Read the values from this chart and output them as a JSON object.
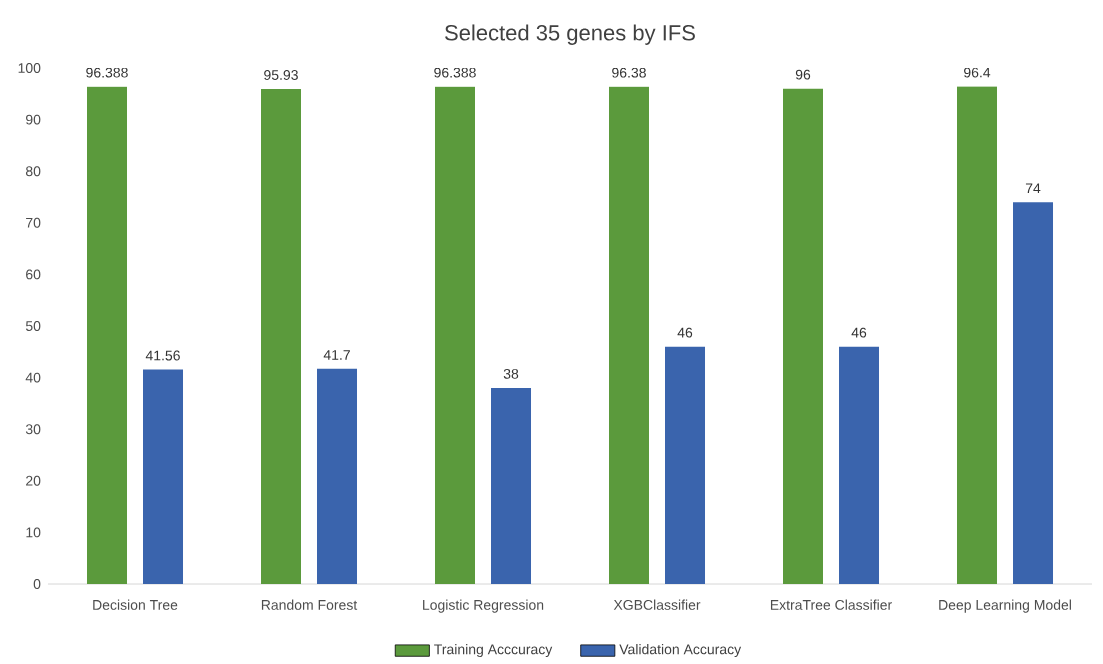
{
  "chart_data": {
    "type": "bar",
    "title": "Selected 35 genes by IFS",
    "categories": [
      "Decision Tree",
      "Random Forest",
      "Logistic Regression",
      "XGBClassifier",
      "ExtraTree Classifier",
      "Deep Learning Model"
    ],
    "series": [
      {
        "name": "Training Acccuracy",
        "color": "#5b9a3c",
        "values": [
          96.388,
          95.93,
          96.388,
          96.38,
          96,
          96.4
        ]
      },
      {
        "name": "Validation Accuracy",
        "color": "#3a64ad",
        "values": [
          41.56,
          41.7,
          38,
          46,
          46,
          74
        ]
      }
    ],
    "ylim": [
      0,
      100
    ],
    "yticks": [
      0,
      10,
      20,
      30,
      40,
      50,
      60,
      70,
      80,
      90,
      100
    ],
    "data_labels": true,
    "grid": false,
    "legend": "bottom"
  }
}
